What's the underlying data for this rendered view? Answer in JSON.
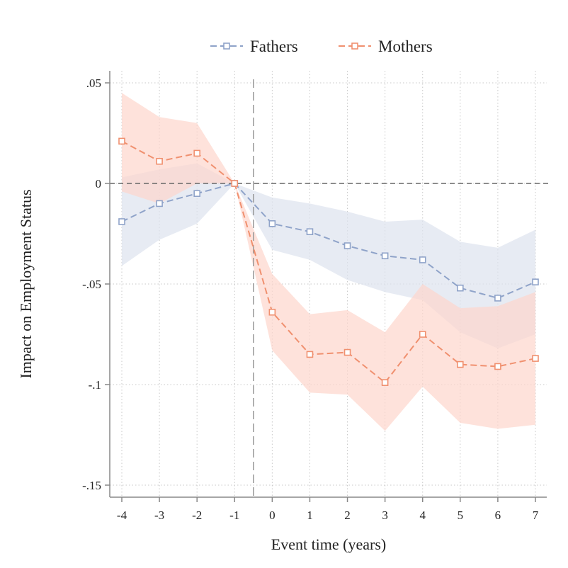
{
  "chart_data": {
    "type": "line",
    "xlabel": "Event time (years)",
    "ylabel": "Impact on Employment Status",
    "x": [
      -4,
      -3,
      -2,
      -1,
      0,
      1,
      2,
      3,
      4,
      5,
      6,
      7
    ],
    "x_tick_labels": [
      "-4",
      "-3",
      "-2",
      "-1",
      "0",
      "1",
      "2",
      "3",
      "4",
      "5",
      "6",
      "7"
    ],
    "xlim": [
      -4,
      7
    ],
    "y_ticks": [
      0.05,
      0,
      -0.05,
      -0.1,
      -0.15
    ],
    "y_tick_labels": [
      ".05",
      "0",
      "-.05",
      "-.1",
      "-.15"
    ],
    "ylim": [
      -0.15,
      0.05
    ],
    "reference_lines": {
      "horizontal_y": 0,
      "vertical_x": -0.5
    },
    "grid": true,
    "legend_position": "top",
    "series": [
      {
        "name": "Fathers",
        "color": "#8fa3c9",
        "band_color": "#dde2ee",
        "marker": "hollow-square",
        "values": [
          -0.019,
          -0.01,
          -0.005,
          0.0,
          -0.02,
          -0.024,
          -0.031,
          -0.036,
          -0.038,
          -0.052,
          -0.057,
          -0.049
        ],
        "ci_upper": [
          0.003,
          0.007,
          0.01,
          0.0,
          -0.007,
          -0.01,
          -0.014,
          -0.019,
          -0.018,
          -0.029,
          -0.032,
          -0.023
        ],
        "ci_lower": [
          -0.041,
          -0.028,
          -0.02,
          0.0,
          -0.033,
          -0.038,
          -0.048,
          -0.054,
          -0.058,
          -0.074,
          -0.082,
          -0.075
        ]
      },
      {
        "name": "Mothers",
        "color": "#f0906f",
        "band_color": "#fdd6cc",
        "marker": "hollow-square",
        "values": [
          0.021,
          0.011,
          0.015,
          0.0,
          -0.064,
          -0.085,
          -0.084,
          -0.099,
          -0.075,
          -0.09,
          -0.091,
          -0.087
        ],
        "ci_upper": [
          0.045,
          0.033,
          0.03,
          0.0,
          -0.045,
          -0.065,
          -0.063,
          -0.074,
          -0.05,
          -0.062,
          -0.061,
          -0.054
        ],
        "ci_lower": [
          -0.004,
          -0.01,
          0.0,
          0.0,
          -0.083,
          -0.104,
          -0.105,
          -0.123,
          -0.101,
          -0.119,
          -0.122,
          -0.12
        ]
      }
    ]
  }
}
